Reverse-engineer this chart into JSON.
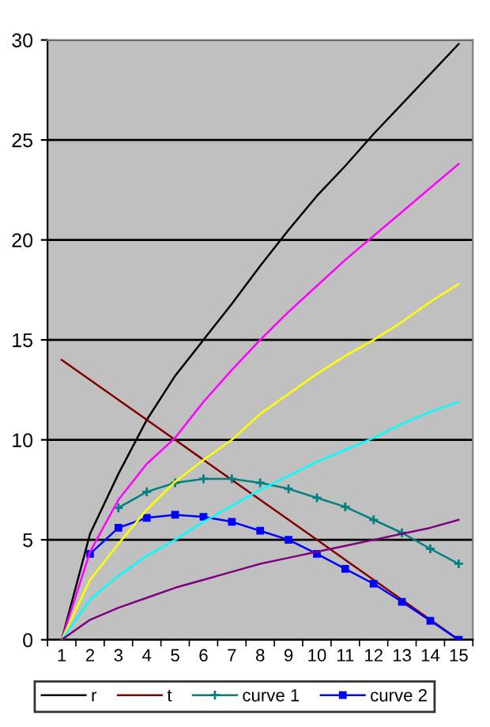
{
  "chart_data": {
    "type": "line",
    "categories": [
      "1",
      "2",
      "3",
      "4",
      "5",
      "6",
      "7",
      "8",
      "9",
      "10",
      "11",
      "12",
      "13",
      "14",
      "15"
    ],
    "series": [
      {
        "name": "r",
        "color": "#000000",
        "values": [
          0,
          5.3,
          8.3,
          11,
          13.2,
          15,
          16.8,
          18.7,
          20.5,
          22.2,
          23.7,
          25.3,
          26.8,
          28.3,
          29.8
        ]
      },
      {
        "name": "t",
        "color": "#800000",
        "values": [
          14,
          13,
          12,
          11,
          10,
          9,
          8,
          7,
          6,
          5,
          4,
          3,
          2,
          1,
          0
        ]
      },
      {
        "name": "curve 1",
        "color": "#008080",
        "marker": "cross",
        "values": [
          null,
          null,
          6.6,
          7.4,
          7.85,
          8.05,
          8.05,
          7.85,
          7.55,
          7.1,
          6.65,
          6.0,
          5.35,
          4.55,
          3.8
        ]
      },
      {
        "name": "curve 2",
        "color": "#0000ff",
        "marker": "square",
        "values": [
          null,
          4.3,
          5.6,
          6.1,
          6.25,
          6.15,
          5.9,
          5.45,
          5.0,
          4.3,
          3.55,
          2.8,
          1.9,
          0.95,
          0
        ]
      },
      {
        "color": "#ff00ff",
        "values": [
          0,
          4.4,
          7.0,
          8.8,
          10.1,
          11.9,
          13.5,
          15,
          16.4,
          17.7,
          19,
          20.2,
          21.4,
          22.6,
          23.8
        ]
      },
      {
        "color": "#ffff00",
        "values": [
          0,
          3.0,
          4.8,
          6.5,
          7.9,
          9.0,
          10,
          11.3,
          12.3,
          13.3,
          14.2,
          15,
          15.9,
          16.9,
          17.8
        ]
      },
      {
        "color": "#00ffff",
        "values": [
          0,
          2.0,
          3.2,
          4.2,
          5.0,
          5.9,
          6.7,
          7.5,
          8.2,
          8.9,
          9.5,
          10.1,
          10.8,
          11.4,
          11.9
        ]
      },
      {
        "color": "#800080",
        "values": [
          0,
          1.0,
          1.6,
          2.1,
          2.6,
          3.0,
          3.4,
          3.8,
          4.1,
          4.4,
          4.7,
          5.0,
          5.3,
          5.6,
          6.0
        ]
      }
    ],
    "ylim": [
      0,
      30
    ],
    "yticks": [
      0,
      5,
      10,
      15,
      20,
      25,
      30
    ],
    "grid": "y",
    "legend": "bottom"
  }
}
